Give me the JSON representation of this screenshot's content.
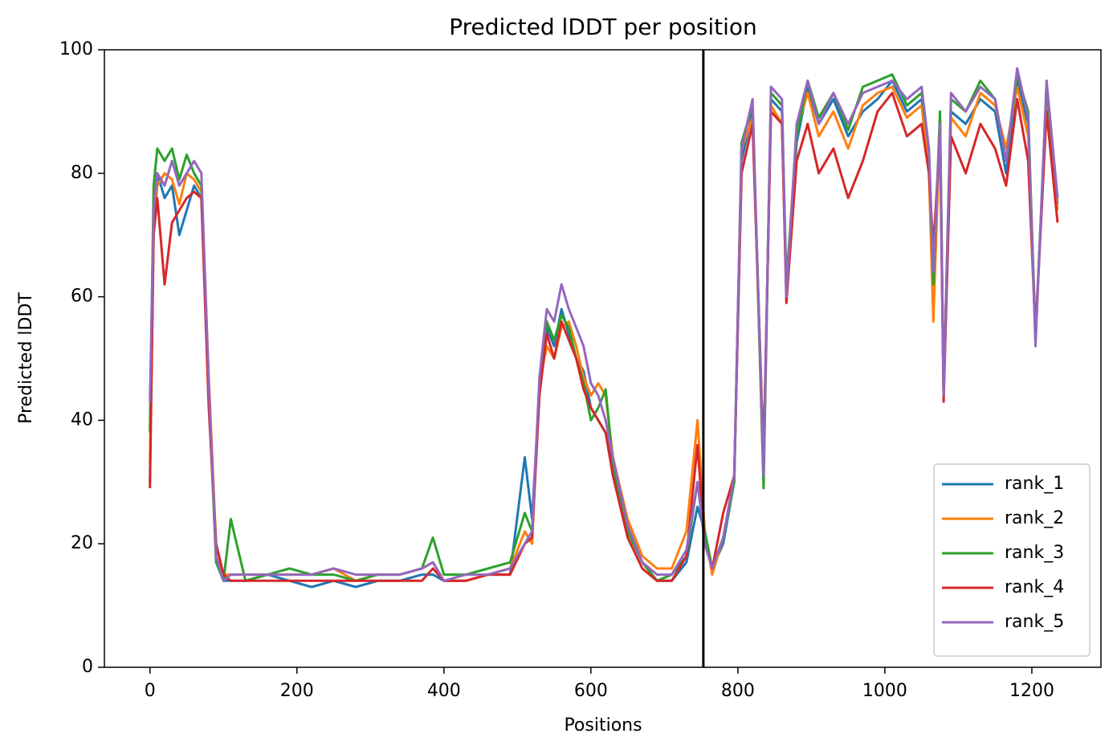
{
  "chart_data": {
    "type": "line",
    "title": "Predicted lDDT per position",
    "xlabel": "Positions",
    "ylabel": "Predicted lDDT",
    "x": [
      0,
      5,
      10,
      20,
      30,
      40,
      50,
      60,
      70,
      80,
      90,
      100,
      110,
      130,
      160,
      190,
      220,
      250,
      280,
      310,
      340,
      370,
      385,
      400,
      430,
      460,
      490,
      510,
      520,
      530,
      540,
      550,
      560,
      570,
      580,
      590,
      600,
      610,
      620,
      630,
      650,
      670,
      690,
      710,
      730,
      745,
      755,
      765,
      780,
      795,
      805,
      820,
      835,
      845,
      860,
      866,
      880,
      895,
      910,
      930,
      950,
      970,
      990,
      1010,
      1030,
      1050,
      1060,
      1066,
      1075,
      1080,
      1090,
      1110,
      1130,
      1150,
      1165,
      1180,
      1195,
      1205,
      1220,
      1235
    ],
    "series": [
      {
        "name": "rank_1",
        "color": "#1f77b4",
        "values": [
          30,
          72,
          80,
          76,
          78,
          70,
          74,
          78,
          76,
          45,
          18,
          14,
          14,
          14,
          15,
          14,
          13,
          14,
          13,
          14,
          14,
          15,
          15,
          14,
          14,
          15,
          15,
          34,
          24,
          45,
          55,
          52,
          58,
          54,
          50,
          48,
          42,
          40,
          38,
          32,
          22,
          17,
          14,
          14,
          17,
          26,
          22,
          16,
          20,
          30,
          82,
          90,
          33,
          92,
          90,
          60,
          85,
          94,
          88,
          92,
          86,
          90,
          92,
          95,
          90,
          92,
          82,
          58,
          88,
          44,
          90,
          88,
          92,
          90,
          80,
          95,
          88,
          54,
          92,
          75
        ]
      },
      {
        "name": "rank_2",
        "color": "#ff7f0e",
        "values": [
          33,
          70,
          78,
          80,
          79,
          75,
          80,
          79,
          77,
          47,
          20,
          15,
          15,
          15,
          15,
          15,
          15,
          16,
          14,
          15,
          15,
          16,
          17,
          14,
          14,
          15,
          16,
          22,
          20,
          46,
          52,
          50,
          55,
          56,
          52,
          47,
          44,
          46,
          44,
          34,
          24,
          18,
          16,
          16,
          22,
          40,
          22,
          15,
          21,
          30,
          84,
          89,
          32,
          91,
          88,
          62,
          87,
          93,
          86,
          90,
          84,
          91,
          93,
          94,
          89,
          91,
          80,
          56,
          88,
          45,
          89,
          86,
          93,
          91,
          84,
          94,
          86,
          54,
          91,
          74
        ]
      },
      {
        "name": "rank_3",
        "color": "#2ca02c",
        "values": [
          38,
          78,
          84,
          82,
          84,
          79,
          83,
          80,
          78,
          44,
          17,
          14,
          24,
          14,
          15,
          16,
          15,
          15,
          14,
          15,
          15,
          16,
          21,
          15,
          15,
          16,
          17,
          25,
          22,
          45,
          56,
          53,
          57,
          55,
          50,
          46,
          40,
          42,
          45,
          33,
          22,
          17,
          14,
          15,
          18,
          30,
          22,
          16,
          21,
          30,
          85,
          91,
          29,
          93,
          91,
          62,
          86,
          95,
          89,
          93,
          87,
          94,
          95,
          96,
          91,
          93,
          84,
          62,
          90,
          44,
          92,
          90,
          95,
          92,
          82,
          96,
          90,
          53,
          94,
          76
        ]
      },
      {
        "name": "rank_4",
        "color": "#d62728",
        "values": [
          29,
          70,
          76,
          62,
          72,
          74,
          76,
          77,
          76,
          42,
          20,
          15,
          14,
          14,
          14,
          14,
          14,
          14,
          14,
          14,
          14,
          14,
          16,
          14,
          14,
          15,
          15,
          20,
          21,
          44,
          54,
          50,
          56,
          53,
          50,
          45,
          42,
          40,
          38,
          31,
          21,
          16,
          14,
          14,
          18,
          36,
          20,
          16,
          25,
          31,
          80,
          88,
          34,
          90,
          88,
          59,
          82,
          88,
          80,
          84,
          76,
          82,
          90,
          93,
          86,
          88,
          80,
          68,
          86,
          43,
          86,
          80,
          88,
          84,
          78,
          92,
          82,
          54,
          90,
          72
        ]
      },
      {
        "name": "rank_5",
        "color": "#9467bd",
        "values": [
          43,
          74,
          80,
          78,
          82,
          78,
          80,
          82,
          80,
          46,
          18,
          14,
          15,
          15,
          15,
          15,
          15,
          16,
          15,
          15,
          15,
          16,
          17,
          14,
          15,
          15,
          16,
          20,
          22,
          47,
          58,
          56,
          62,
          58,
          55,
          52,
          46,
          44,
          40,
          34,
          23,
          17,
          15,
          15,
          19,
          30,
          20,
          16,
          21,
          31,
          84,
          92,
          31,
          94,
          92,
          60,
          88,
          95,
          88,
          93,
          88,
          93,
          94,
          95,
          92,
          94,
          84,
          64,
          88,
          44,
          93,
          90,
          94,
          92,
          82,
          97,
          89,
          52,
          95,
          76
        ]
      }
    ],
    "vline": 753,
    "vline_color": "#000000",
    "xlim": [
      -62,
      1294
    ],
    "ylim": [
      0,
      100
    ],
    "xticks": [
      0,
      200,
      400,
      600,
      800,
      1000,
      1200
    ],
    "yticks": [
      0,
      20,
      40,
      60,
      80,
      100
    ],
    "legend": "lower right"
  }
}
